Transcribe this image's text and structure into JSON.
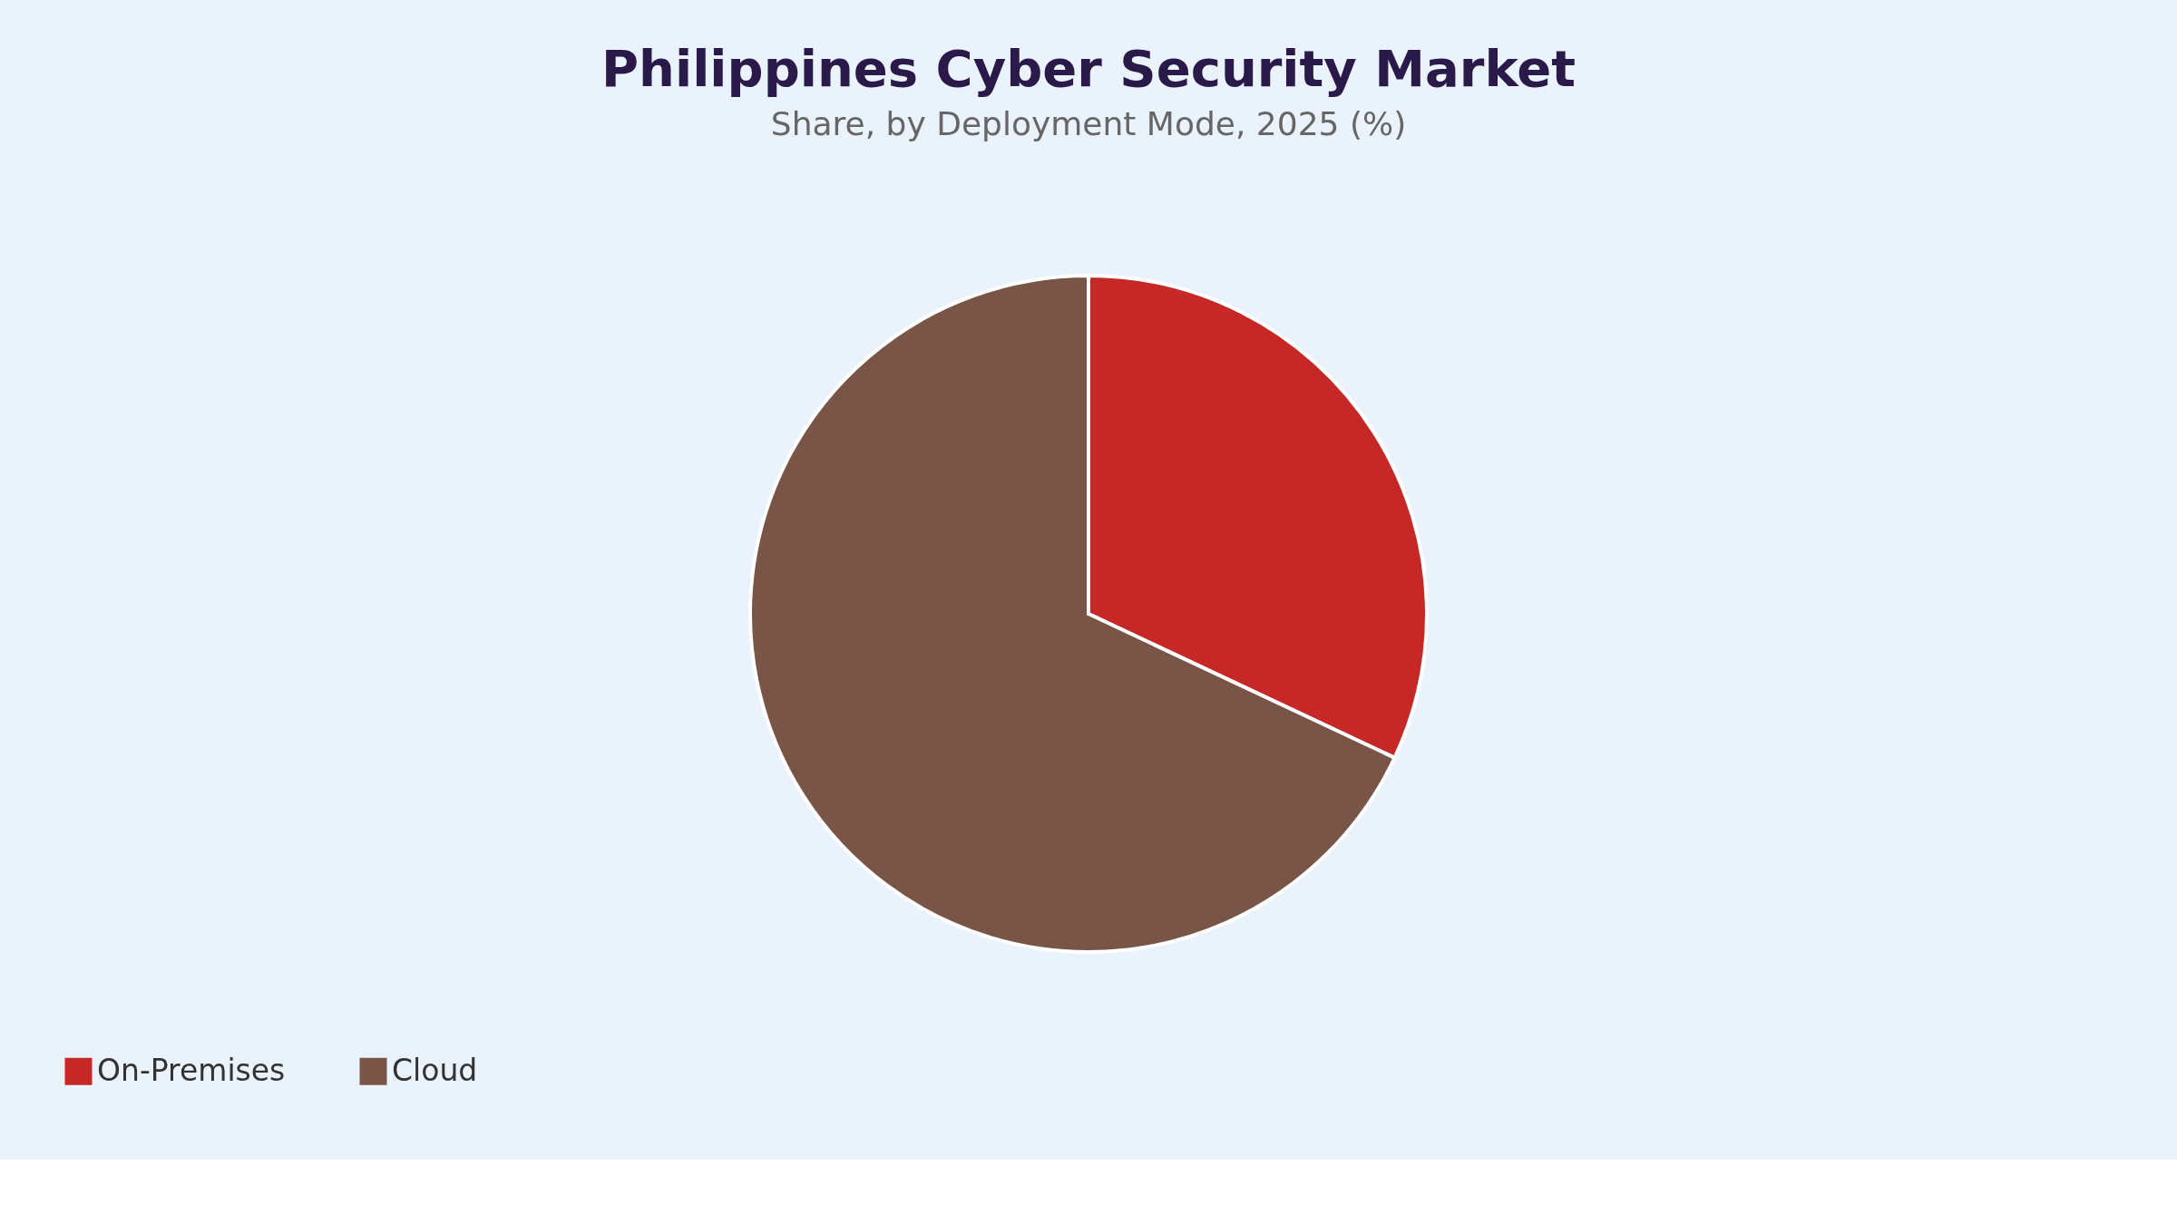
{
  "chart_data": {
    "type": "pie",
    "title": "Philippines Cyber Security Market",
    "subtitle": "Share, by Deployment Mode, 2025 (%)",
    "categories": [
      "On-Premises",
      "Cloud"
    ],
    "values": [
      32,
      68
    ],
    "colors": [
      "#c62828",
      "#795548"
    ],
    "legend": "bottom"
  }
}
